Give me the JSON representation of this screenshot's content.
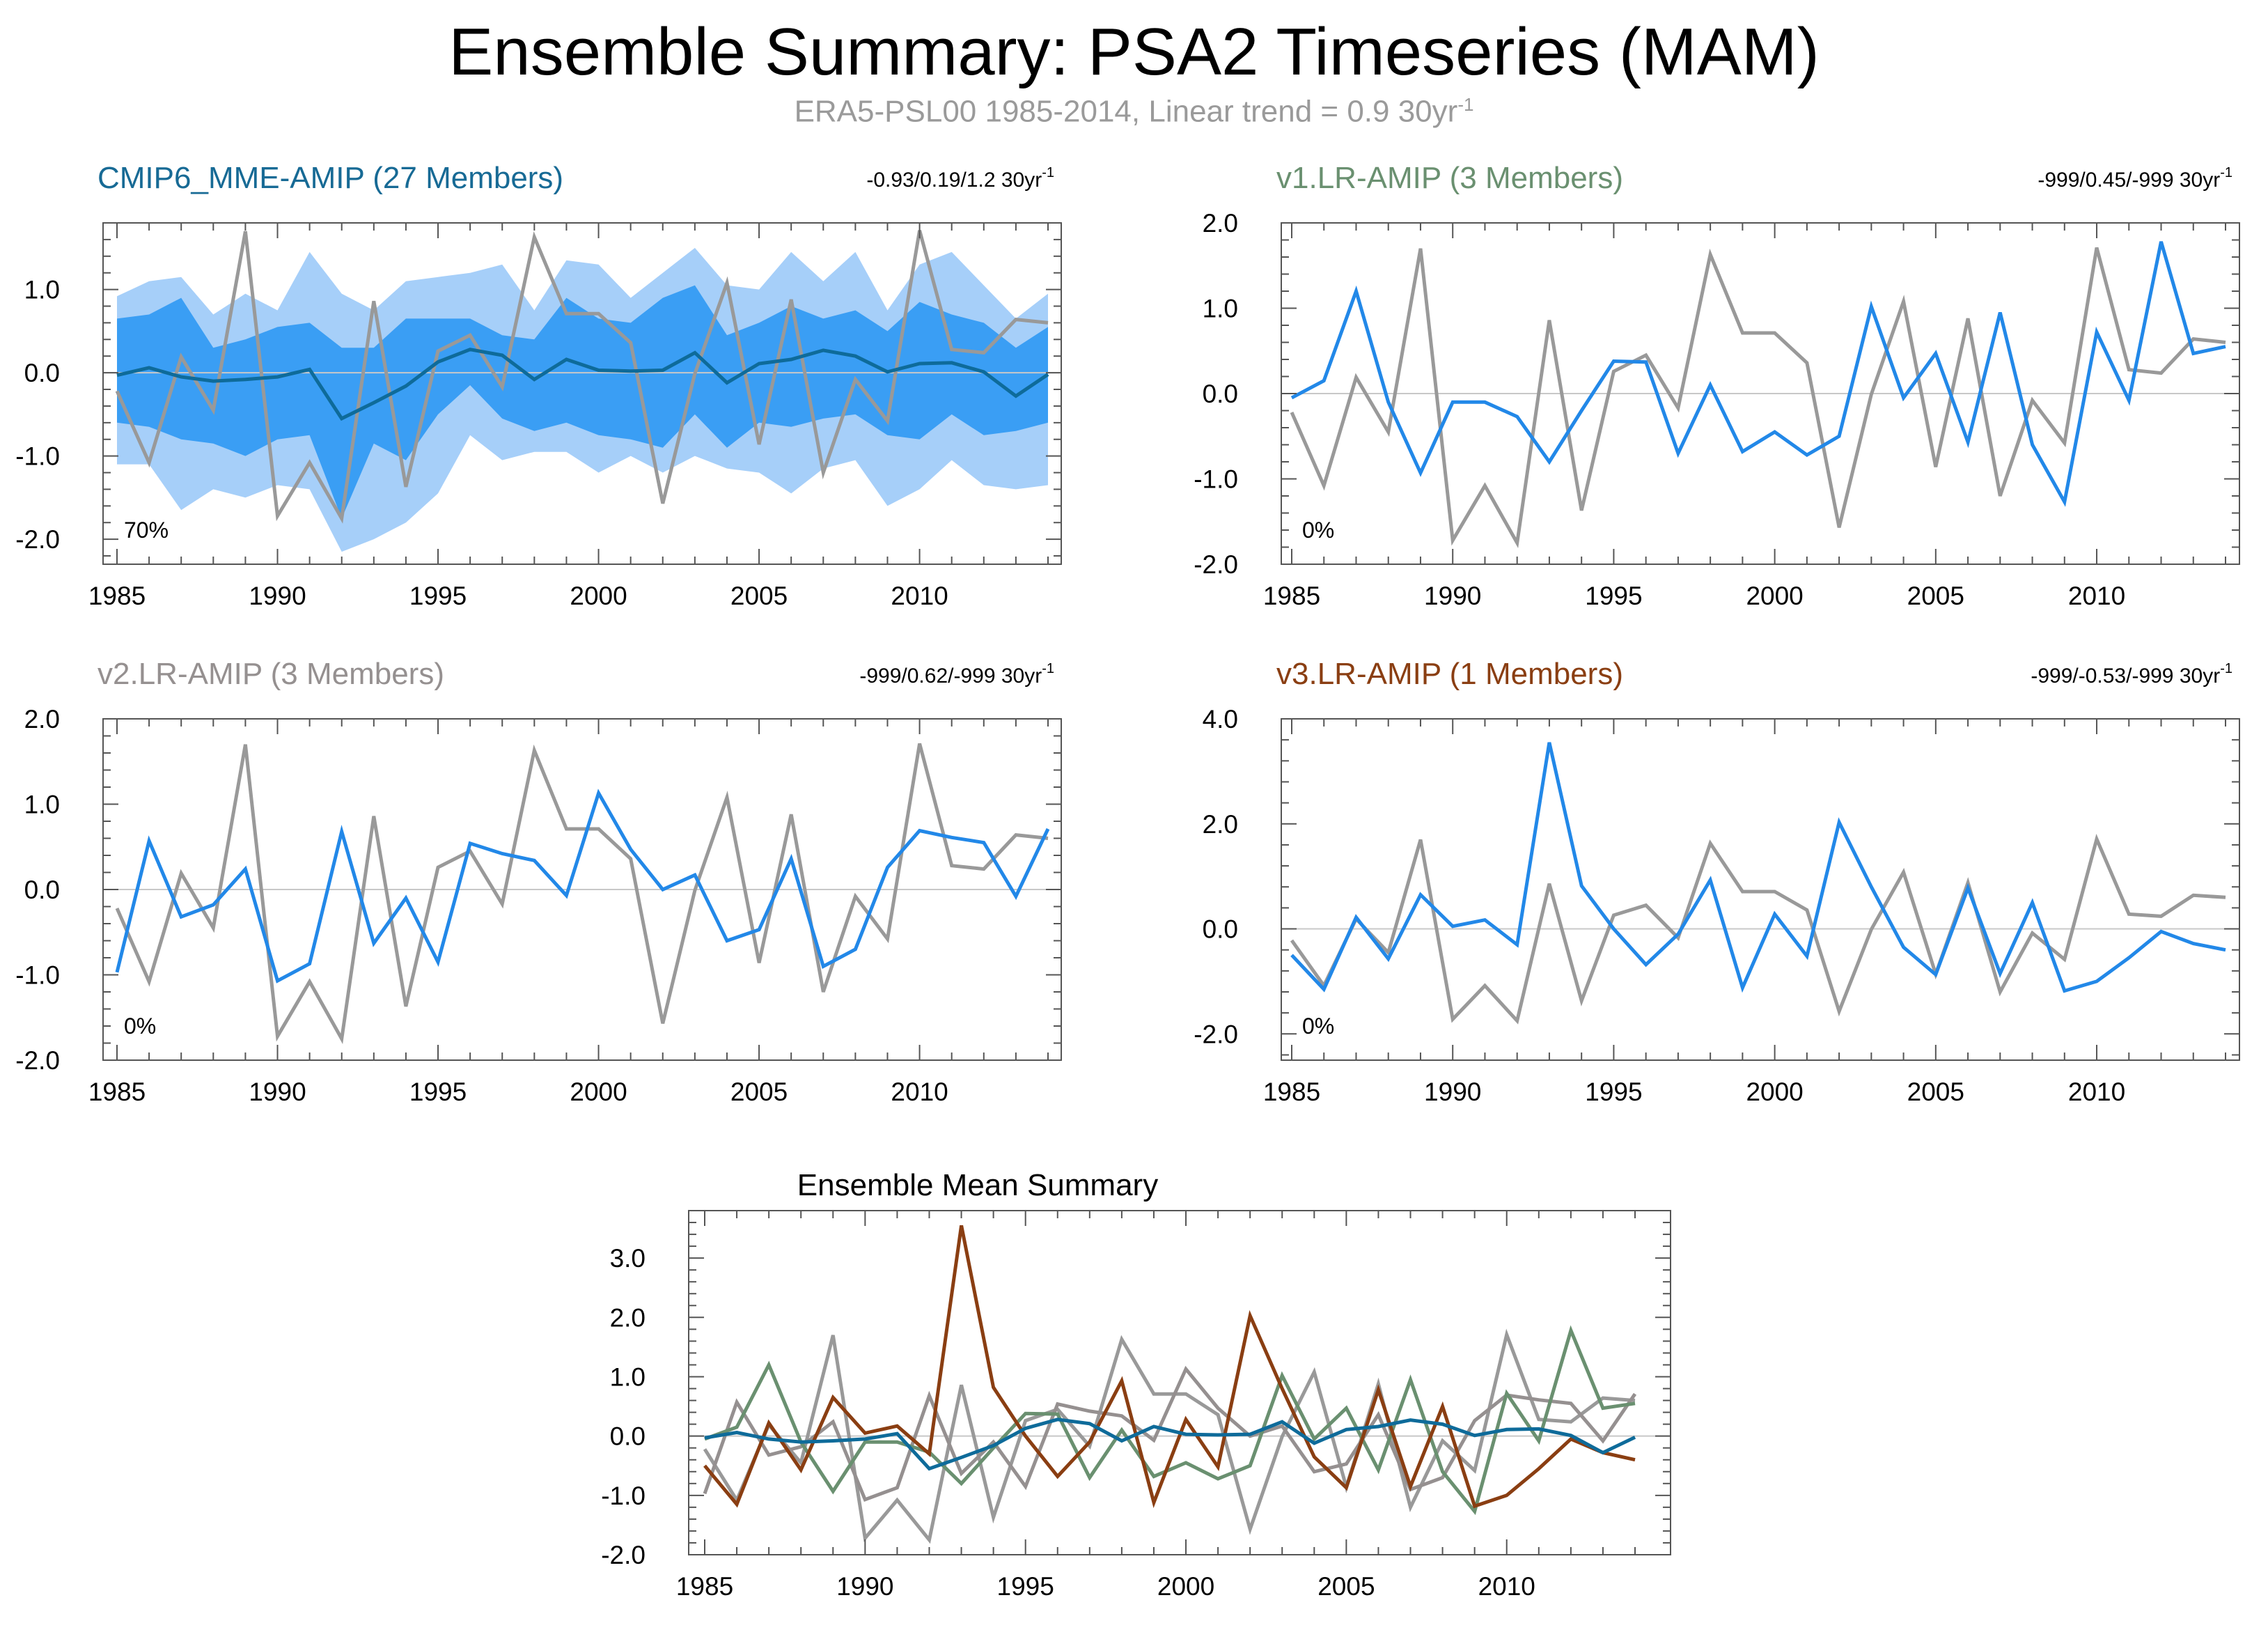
{
  "title": "Ensemble Summary: PSA2 Timeseries (MAM)",
  "subtitle": {
    "text": "ERA5-PSL00 1985-2014, Linear trend = 0.9 30yr",
    "superscript": "-1"
  },
  "colors": {
    "reference": "#999999",
    "series": "#2288e8",
    "mme": "#0e6b9a",
    "band_outer": "#a6cff9",
    "band_inner": "#3a9ef4",
    "v1": "#6a9070",
    "v2": "#959090",
    "v3": "#8a3e12",
    "zero_line": "#c8c8c8"
  },
  "chart_data": [
    {
      "id": "panel1",
      "type": "line",
      "title": "CMIP6_MME-AMIP (27 Members)",
      "title_color": "#176a95",
      "stat": "-0.93/0.19/1.2 30yr",
      "stat_sup": "-1",
      "pct": "70%",
      "ylim": [
        -2.3,
        1.8
      ],
      "yticks": [
        -2.0,
        -1.0,
        0.0,
        1.0
      ],
      "ytick_labels": [
        "-2.0",
        "-1.0",
        "0.0",
        "1.0"
      ],
      "xticks": [
        1985,
        1990,
        1995,
        2000,
        2005,
        2010
      ],
      "x": [
        1985,
        1986,
        1987,
        1988,
        1989,
        1990,
        1991,
        1992,
        1993,
        1994,
        1995,
        1996,
        1997,
        1998,
        1999,
        2000,
        2001,
        2002,
        2003,
        2004,
        2005,
        2006,
        2007,
        2008,
        2009,
        2010,
        2011,
        2012,
        2013,
        2014
      ],
      "band_outer_upper": [
        0.92,
        1.1,
        1.15,
        0.7,
        0.95,
        0.75,
        1.45,
        0.95,
        0.75,
        1.1,
        1.15,
        1.2,
        1.3,
        0.75,
        1.35,
        1.3,
        0.9,
        1.2,
        1.5,
        1.05,
        1.0,
        1.45,
        1.1,
        1.45,
        0.75,
        1.3,
        1.45,
        1.05,
        0.65,
        0.95
      ],
      "band_inner_upper": [
        0.65,
        0.7,
        0.9,
        0.3,
        0.4,
        0.55,
        0.6,
        0.3,
        0.3,
        0.65,
        0.65,
        0.65,
        0.45,
        0.4,
        0.9,
        0.65,
        0.6,
        0.9,
        1.05,
        0.45,
        0.6,
        0.8,
        0.65,
        0.75,
        0.5,
        0.85,
        0.7,
        0.6,
        0.3,
        0.55
      ],
      "band_inner_lower": [
        -0.6,
        -0.65,
        -0.8,
        -0.85,
        -1.0,
        -0.8,
        -0.75,
        -1.75,
        -0.85,
        -1.05,
        -0.5,
        -0.15,
        -0.55,
        -0.7,
        -0.6,
        -0.75,
        -0.8,
        -0.9,
        -0.5,
        -0.9,
        -0.6,
        -0.65,
        -0.55,
        -0.5,
        -0.75,
        -0.8,
        -0.5,
        -0.75,
        -0.7,
        -0.6
      ],
      "band_outer_lower": [
        -1.1,
        -1.1,
        -1.65,
        -1.4,
        -1.5,
        -1.35,
        -1.4,
        -2.15,
        -2.0,
        -1.8,
        -1.45,
        -0.75,
        -1.05,
        -0.95,
        -0.95,
        -1.2,
        -1.0,
        -1.2,
        -1.0,
        -1.15,
        -1.2,
        -1.45,
        -1.15,
        -1.05,
        -1.6,
        -1.4,
        -1.05,
        -1.35,
        -1.4,
        -1.35
      ],
      "series": [
        {
          "name": "ERA5-PSL00",
          "color_key": "reference",
          "values": [
            -0.22,
            -1.08,
            0.19,
            -0.45,
            1.7,
            -1.72,
            -1.08,
            -1.75,
            0.86,
            -1.37,
            0.26,
            0.45,
            -0.17,
            1.63,
            0.71,
            0.71,
            0.36,
            -1.57,
            -0.01,
            1.08,
            -0.86,
            0.88,
            -1.2,
            -0.08,
            -0.58,
            1.71,
            0.28,
            0.24,
            0.64,
            0.6
          ]
        },
        {
          "name": "CMIP6_MME-AMIP",
          "color_key": "mme",
          "values": [
            -0.03,
            0.06,
            -0.05,
            -0.1,
            -0.08,
            -0.05,
            0.04,
            -0.55,
            -0.36,
            -0.16,
            0.13,
            0.28,
            0.21,
            -0.08,
            0.16,
            0.03,
            0.02,
            0.03,
            0.24,
            -0.12,
            0.11,
            0.16,
            0.27,
            0.2,
            0.01,
            0.11,
            0.12,
            0.01,
            -0.28,
            -0.02
          ]
        }
      ]
    },
    {
      "id": "panel2",
      "type": "line",
      "title": "v1.LR-AMIP (3 Members)",
      "title_color": "#6a9070",
      "stat": "-999/0.45/-999 30yr",
      "stat_sup": "-1",
      "pct": "0%",
      "ylim": [
        -2.0,
        2.0
      ],
      "yticks": [
        -2.0,
        -1.0,
        0.0,
        1.0,
        2.0
      ],
      "ytick_labels": [
        "-2.0",
        "-1.0",
        "0.0",
        "1.0",
        "2.0"
      ],
      "xticks": [
        1985,
        1990,
        1995,
        2000,
        2005,
        2010
      ],
      "x": [
        1985,
        1986,
        1987,
        1988,
        1989,
        1990,
        1991,
        1992,
        1993,
        1994,
        1995,
        1996,
        1997,
        1998,
        1999,
        2000,
        2001,
        2002,
        2003,
        2004,
        2005,
        2006,
        2007,
        2008,
        2009,
        2010,
        2011,
        2012,
        2013,
        2014
      ],
      "series": [
        {
          "name": "ERA5-PSL00",
          "color_key": "reference",
          "values": [
            -0.22,
            -1.08,
            0.19,
            -0.45,
            1.7,
            -1.72,
            -1.08,
            -1.75,
            0.86,
            -1.37,
            0.26,
            0.45,
            -0.17,
            1.63,
            0.71,
            0.71,
            0.36,
            -1.57,
            -0.01,
            1.08,
            -0.86,
            0.88,
            -1.2,
            -0.08,
            -0.58,
            1.71,
            0.28,
            0.24,
            0.64,
            0.6
          ]
        },
        {
          "name": "v1.LR-AMIP",
          "color_key": "series",
          "values": [
            -0.05,
            0.15,
            1.2,
            -0.1,
            -0.93,
            -0.1,
            -0.1,
            -0.27,
            -0.8,
            -0.2,
            0.38,
            0.37,
            -0.7,
            0.1,
            -0.68,
            -0.45,
            -0.72,
            -0.5,
            1.02,
            -0.05,
            0.47,
            -0.57,
            0.95,
            -0.6,
            -1.27,
            0.72,
            -0.08,
            1.78,
            0.47,
            0.55
          ]
        }
      ]
    },
    {
      "id": "panel3",
      "type": "line",
      "title": "v2.LR-AMIP (3 Members)",
      "title_color": "#959090",
      "stat": "-999/0.62/-999 30yr",
      "stat_sup": "-1",
      "pct": "0%",
      "ylim": [
        -2.0,
        2.0
      ],
      "yticks": [
        -2.0,
        -1.0,
        0.0,
        1.0,
        2.0
      ],
      "ytick_labels": [
        "-2.0",
        "-1.0",
        "0.0",
        "1.0",
        "2.0"
      ],
      "xticks": [
        1985,
        1990,
        1995,
        2000,
        2005,
        2010
      ],
      "x": [
        1985,
        1986,
        1987,
        1988,
        1989,
        1990,
        1991,
        1992,
        1993,
        1994,
        1995,
        1996,
        1997,
        1998,
        1999,
        2000,
        2001,
        2002,
        2003,
        2004,
        2005,
        2006,
        2007,
        2008,
        2009,
        2010,
        2011,
        2012,
        2013,
        2014
      ],
      "series": [
        {
          "name": "ERA5-PSL00",
          "color_key": "reference",
          "values": [
            -0.22,
            -1.08,
            0.19,
            -0.45,
            1.7,
            -1.72,
            -1.08,
            -1.75,
            0.86,
            -1.37,
            0.26,
            0.45,
            -0.17,
            1.63,
            0.71,
            0.71,
            0.36,
            -1.57,
            -0.01,
            1.08,
            -0.86,
            0.88,
            -1.2,
            -0.08,
            -0.58,
            1.71,
            0.28,
            0.24,
            0.64,
            0.6
          ]
        },
        {
          "name": "v2.LR-AMIP",
          "color_key": "series",
          "values": [
            -0.97,
            0.57,
            -0.32,
            -0.18,
            0.24,
            -1.07,
            -0.87,
            0.68,
            -0.63,
            -0.1,
            -0.85,
            0.54,
            0.42,
            0.34,
            -0.07,
            1.13,
            0.47,
            0.0,
            0.17,
            -0.6,
            -0.47,
            0.36,
            -0.9,
            -0.7,
            0.26,
            0.69,
            0.61,
            0.55,
            -0.08,
            0.71
          ]
        }
      ]
    },
    {
      "id": "panel4",
      "type": "line",
      "title": "v3.LR-AMIP (1 Members)",
      "title_color": "#8a3e12",
      "stat": "-999/-0.53/-999 30yr",
      "stat_sup": "-1",
      "pct": "0%",
      "ylim": [
        -2.5,
        4.0
      ],
      "yticks": [
        -2.0,
        0.0,
        2.0,
        4.0
      ],
      "ytick_labels": [
        "-2.0",
        "0.0",
        "2.0",
        "4.0"
      ],
      "xticks": [
        1985,
        1990,
        1995,
        2000,
        2005,
        2010
      ],
      "x": [
        1985,
        1986,
        1987,
        1988,
        1989,
        1990,
        1991,
        1992,
        1993,
        1994,
        1995,
        1996,
        1997,
        1998,
        1999,
        2000,
        2001,
        2002,
        2003,
        2004,
        2005,
        2006,
        2007,
        2008,
        2009,
        2010,
        2011,
        2012,
        2013,
        2014
      ],
      "series": [
        {
          "name": "ERA5-PSL00",
          "color_key": "reference",
          "values": [
            -0.22,
            -1.08,
            0.19,
            -0.45,
            1.7,
            -1.72,
            -1.08,
            -1.75,
            0.86,
            -1.37,
            0.26,
            0.45,
            -0.17,
            1.63,
            0.71,
            0.71,
            0.36,
            -1.57,
            -0.01,
            1.08,
            -0.86,
            0.88,
            -1.2,
            -0.08,
            -0.58,
            1.71,
            0.28,
            0.24,
            0.64,
            0.6
          ]
        },
        {
          "name": "v3.LR-AMIP",
          "color_key": "series",
          "values": [
            -0.5,
            -1.15,
            0.22,
            -0.57,
            0.65,
            0.05,
            0.17,
            -0.3,
            3.55,
            0.82,
            0.0,
            -0.68,
            -0.1,
            0.93,
            -1.12,
            0.28,
            -0.52,
            2.03,
            0.8,
            -0.35,
            -0.87,
            0.78,
            -0.85,
            0.5,
            -1.18,
            -1.0,
            -0.55,
            -0.05,
            -0.28,
            -0.4
          ]
        }
      ]
    },
    {
      "id": "panel5",
      "type": "line",
      "title": "Ensemble Mean Summary",
      "title_color": "#000000",
      "ylim": [
        -2.0,
        3.8
      ],
      "yticks": [
        -2.0,
        -1.0,
        0.0,
        1.0,
        2.0,
        3.0
      ],
      "ytick_labels": [
        "-2.0",
        "-1.0",
        "0.0",
        "1.0",
        "2.0",
        "3.0"
      ],
      "xticks": [
        1985,
        1990,
        1995,
        2000,
        2005,
        2010
      ],
      "x": [
        1985,
        1986,
        1987,
        1988,
        1989,
        1990,
        1991,
        1992,
        1993,
        1994,
        1995,
        1996,
        1997,
        1998,
        1999,
        2000,
        2001,
        2002,
        2003,
        2004,
        2005,
        2006,
        2007,
        2008,
        2009,
        2010,
        2011,
        2012,
        2013,
        2014
      ],
      "series": [
        {
          "name": "ERA5-PSL00",
          "color_key": "reference",
          "values": [
            -0.22,
            -1.08,
            0.19,
            -0.45,
            1.7,
            -1.72,
            -1.08,
            -1.75,
            0.86,
            -1.37,
            0.26,
            0.45,
            -0.17,
            1.63,
            0.71,
            0.71,
            0.36,
            -1.57,
            -0.01,
            1.08,
            -0.86,
            0.88,
            -1.2,
            -0.08,
            -0.58,
            1.71,
            0.28,
            0.24,
            0.64,
            0.6
          ]
        },
        {
          "name": "v2.LR-AMIP",
          "color_key": "v2",
          "values": [
            -0.97,
            0.57,
            -0.32,
            -0.18,
            0.24,
            -1.07,
            -0.87,
            0.68,
            -0.63,
            -0.1,
            -0.85,
            0.54,
            0.42,
            0.34,
            -0.07,
            1.13,
            0.47,
            0.0,
            0.17,
            -0.6,
            -0.47,
            0.36,
            -0.9,
            -0.7,
            0.26,
            0.69,
            0.61,
            0.55,
            -0.08,
            0.71
          ]
        },
        {
          "name": "v1.LR-AMIP",
          "color_key": "v1",
          "values": [
            -0.05,
            0.15,
            1.2,
            -0.1,
            -0.93,
            -0.1,
            -0.1,
            -0.27,
            -0.8,
            -0.2,
            0.38,
            0.37,
            -0.7,
            0.1,
            -0.68,
            -0.45,
            -0.72,
            -0.5,
            1.02,
            -0.05,
            0.47,
            -0.57,
            0.95,
            -0.6,
            -1.27,
            0.72,
            -0.08,
            1.78,
            0.47,
            0.55
          ]
        },
        {
          "name": "v3.LR-AMIP",
          "color_key": "v3",
          "values": [
            -0.5,
            -1.15,
            0.22,
            -0.57,
            0.65,
            0.05,
            0.17,
            -0.3,
            3.55,
            0.82,
            0.0,
            -0.68,
            -0.1,
            0.93,
            -1.12,
            0.28,
            -0.52,
            2.03,
            0.8,
            -0.35,
            -0.87,
            0.78,
            -0.85,
            0.5,
            -1.18,
            -1.0,
            -0.55,
            -0.05,
            -0.28,
            -0.4
          ]
        },
        {
          "name": "CMIP6_MME-AMIP",
          "color_key": "mme",
          "values": [
            -0.03,
            0.06,
            -0.05,
            -0.1,
            -0.08,
            -0.05,
            0.04,
            -0.55,
            -0.36,
            -0.16,
            0.13,
            0.28,
            0.21,
            -0.08,
            0.16,
            0.03,
            0.02,
            0.03,
            0.24,
            -0.12,
            0.11,
            0.16,
            0.27,
            0.2,
            0.01,
            0.11,
            0.12,
            0.01,
            -0.28,
            -0.02
          ]
        }
      ]
    }
  ]
}
